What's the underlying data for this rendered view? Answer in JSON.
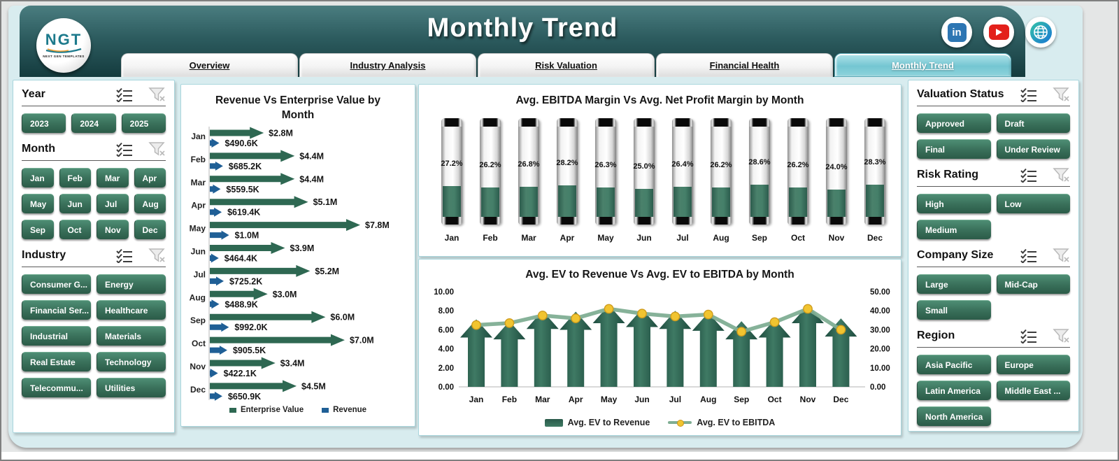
{
  "header": {
    "title": "Monthly Trend",
    "logo": {
      "text": "NGT",
      "subtext": "NEXT GEN TEMPLATES"
    },
    "social": [
      "linkedin",
      "youtube",
      "web"
    ],
    "tabs": [
      {
        "label": "Overview",
        "active": false
      },
      {
        "label": "Industry Analysis",
        "active": false
      },
      {
        "label": "Risk Valuation",
        "active": false
      },
      {
        "label": "Financial Health",
        "active": false
      },
      {
        "label": "Monthly Trend",
        "active": true
      }
    ]
  },
  "colors": {
    "accent_green": "#39705a",
    "enterprise_value": "#2e6852",
    "revenue_blue": "#1f5f96",
    "line_green": "#7fae93",
    "dot_yellow": "#f1c430",
    "active_tab": "#74c6d2",
    "header_teal": "#143b3e"
  },
  "left_slicers": [
    {
      "title": "Year",
      "cols": 3,
      "items": [
        "2023",
        "2024",
        "2025"
      ]
    },
    {
      "title": "Month",
      "cols": 4,
      "items": [
        "Jan",
        "Feb",
        "Mar",
        "Apr",
        "May",
        "Jun",
        "Jul",
        "Aug",
        "Sep",
        "Oct",
        "Nov",
        "Dec"
      ]
    },
    {
      "title": "Industry",
      "cols": 2,
      "items": [
        "Consumer G...",
        "Energy",
        "Financial Ser...",
        "Healthcare",
        "Industrial",
        "Materials",
        "Real Estate",
        "Technology",
        "Telecommu...",
        "Utilities"
      ]
    }
  ],
  "right_slicers": [
    {
      "title": "Valuation Status",
      "cols": 2,
      "items": [
        "Approved",
        "Draft",
        "Final",
        "Under Review"
      ]
    },
    {
      "title": "Risk Rating",
      "cols": 2,
      "items": [
        "High",
        "Low",
        "Medium"
      ]
    },
    {
      "title": "Company Size",
      "cols": 2,
      "items": [
        "Large",
        "Mid-Cap",
        "Small"
      ]
    },
    {
      "title": "Region",
      "cols": 2,
      "items": [
        "Asia Pacific",
        "Europe",
        "Latin America",
        "Middle East ...",
        "North America"
      ]
    }
  ],
  "chart_data": [
    {
      "type": "bar",
      "subtype": "horizontal-arrow-bars",
      "title": "Revenue Vs Enterprise Value by Month",
      "categories": [
        "Jan",
        "Feb",
        "Mar",
        "Apr",
        "May",
        "Jun",
        "Jul",
        "Aug",
        "Sep",
        "Oct",
        "Nov",
        "Dec"
      ],
      "xlim_millions": [
        0,
        7.8
      ],
      "series": [
        {
          "name": "Enterprise Value",
          "color": "#2e6852",
          "labels": [
            "$2.8M",
            "$4.4M",
            "$4.4M",
            "$5.1M",
            "$7.8M",
            "$3.9M",
            "$5.2M",
            "$3.0M",
            "$6.0M",
            "$7.0M",
            "$3.4M",
            "$4.5M"
          ],
          "values_millions": [
            2.8,
            4.4,
            4.4,
            5.1,
            7.8,
            3.9,
            5.2,
            3.0,
            6.0,
            7.0,
            3.4,
            4.5
          ]
        },
        {
          "name": "Revenue",
          "color": "#1f5f96",
          "labels": [
            "$490.6K",
            "$685.2K",
            "$559.5K",
            "$619.4K",
            "$1.0M",
            "$464.4K",
            "$725.2K",
            "$488.9K",
            "$992.0K",
            "$905.5K",
            "$422.1K",
            "$650.9K"
          ],
          "values_millions": [
            0.4906,
            0.6852,
            0.5595,
            0.6194,
            1.0,
            0.4644,
            0.7252,
            0.4889,
            0.992,
            0.9055,
            0.4221,
            0.6509
          ]
        }
      ]
    },
    {
      "type": "bar",
      "subtype": "cylinder-gauges",
      "title": "Avg. EBITDA Margin Vs Avg. Net Profit Margin by Month",
      "categories": [
        "Jan",
        "Feb",
        "Mar",
        "Apr",
        "May",
        "Jun",
        "Jul",
        "Aug",
        "Sep",
        "Oct",
        "Nov",
        "Dec"
      ],
      "labels": [
        "27.2%",
        "26.2%",
        "26.8%",
        "28.2%",
        "26.3%",
        "25.0%",
        "26.4%",
        "26.2%",
        "28.6%",
        "26.2%",
        "24.0%",
        "28.3%"
      ],
      "values_pct": [
        27.2,
        26.2,
        26.8,
        28.2,
        26.3,
        25.0,
        26.4,
        26.2,
        28.6,
        26.2,
        24.0,
        28.3
      ],
      "ylim": [
        0,
        100
      ]
    },
    {
      "type": "bar",
      "subtype": "arrow-bars-plus-line",
      "title": "Avg. EV to Revenue Vs Avg. EV to EBITDA by Month",
      "categories": [
        "Jan",
        "Feb",
        "Mar",
        "Apr",
        "May",
        "Jun",
        "Jul",
        "Aug",
        "Sep",
        "Oct",
        "Nov",
        "Dec"
      ],
      "left_axis_ticks": [
        "10.00",
        "8.00",
        "6.00",
        "4.00",
        "2.00",
        "0.00"
      ],
      "right_axis_ticks": [
        "50.00",
        "40.00",
        "30.00",
        "20.00",
        "10.00",
        "0.00"
      ],
      "ylim_left": [
        0,
        10
      ],
      "ylim_right": [
        0,
        50
      ],
      "series": [
        {
          "name": "Avg. EV to Revenue",
          "render": "bar",
          "axis": "left",
          "values": [
            7.1,
            6.9,
            8.0,
            7.9,
            8.6,
            8.2,
            8.0,
            7.8,
            6.9,
            7.1,
            8.6,
            7.2
          ]
        },
        {
          "name": "Avg. EV to EBITDA",
          "render": "line",
          "axis": "right",
          "values": [
            32.5,
            33.5,
            37.5,
            36.0,
            41.0,
            38.5,
            37.0,
            38.0,
            29.0,
            34.0,
            41.0,
            30.0
          ]
        }
      ]
    }
  ]
}
